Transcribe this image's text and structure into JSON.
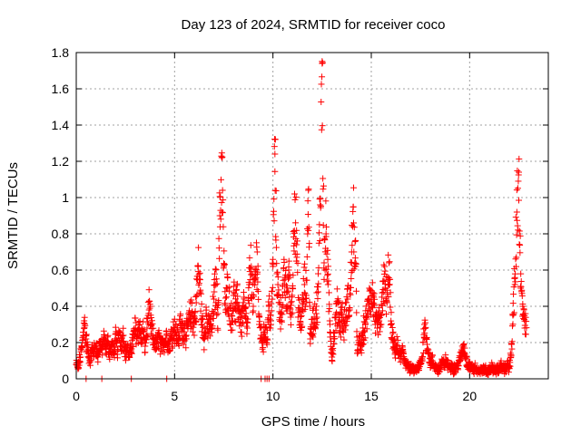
{
  "chart_data": {
    "type": "scatter",
    "title": "Day 123 of 2024, SRMTID for receiver coco",
    "xlabel": "GPS time / hours",
    "ylabel": "SRMTID / TECUs",
    "xlim": [
      0,
      24
    ],
    "ylim": [
      0,
      1.8
    ],
    "xticks": [
      0,
      5,
      10,
      15,
      20
    ],
    "yticks": [
      0,
      0.2,
      0.4,
      0.6,
      0.8,
      1.0,
      1.2,
      1.4,
      1.6,
      1.8
    ],
    "ytick_labels": [
      "0",
      "0.2",
      "0.4",
      "0.6",
      "0.8",
      "1",
      "1.2",
      "1.4",
      "1.6",
      "1.8"
    ],
    "grid": true,
    "marker": "+",
    "color": "#ff0000",
    "series": [
      {
        "name": "SRMTID",
        "x": [
          0.0,
          0.1,
          0.2,
          0.3,
          0.4,
          0.5,
          0.6,
          0.7,
          0.8,
          0.9,
          1.0,
          1.1,
          1.2,
          1.3,
          1.4,
          1.5,
          1.6,
          1.7,
          1.8,
          1.9,
          2.0,
          2.1,
          2.2,
          2.3,
          2.4,
          2.5,
          2.6,
          2.7,
          2.8,
          2.9,
          3.0,
          3.1,
          3.2,
          3.3,
          3.4,
          3.5,
          3.6,
          3.7,
          3.8,
          3.9,
          4.0,
          4.1,
          4.2,
          4.3,
          4.4,
          4.5,
          4.6,
          4.7,
          4.8,
          4.9,
          5.0,
          5.1,
          5.2,
          5.3,
          5.4,
          5.5,
          5.6,
          5.7,
          5.8,
          5.9,
          6.0,
          6.1,
          6.2,
          6.3,
          6.4,
          6.5,
          6.6,
          6.7,
          6.8,
          6.9,
          7.0,
          7.1,
          7.2,
          7.3,
          7.4,
          7.5,
          7.6,
          7.7,
          7.8,
          7.9,
          8.0,
          8.1,
          8.2,
          8.3,
          8.4,
          8.5,
          8.6,
          8.7,
          8.8,
          8.9,
          9.0,
          9.1,
          9.2,
          9.3,
          9.4,
          9.5,
          9.6,
          9.7,
          9.8,
          9.9,
          10.0,
          10.1,
          10.2,
          10.3,
          10.4,
          10.5,
          10.6,
          10.7,
          10.8,
          10.9,
          11.0,
          11.1,
          11.2,
          11.3,
          11.4,
          11.5,
          11.6,
          11.7,
          11.8,
          11.9,
          12.0,
          12.1,
          12.2,
          12.3,
          12.4,
          12.5,
          12.6,
          12.7,
          12.8,
          12.9,
          13.0,
          13.1,
          13.2,
          13.3,
          13.4,
          13.5,
          13.6,
          13.7,
          13.8,
          13.9,
          14.0,
          14.1,
          14.2,
          14.3,
          14.4,
          14.5,
          14.6,
          14.7,
          14.8,
          14.9,
          15.0,
          15.1,
          15.2,
          15.3,
          15.4,
          15.5,
          15.6,
          15.7,
          15.8,
          15.9,
          16.0,
          16.1,
          16.2,
          16.3,
          16.4,
          16.5,
          16.6,
          16.7,
          16.8,
          16.9,
          17.0,
          17.1,
          17.2,
          17.3,
          17.4,
          17.5,
          17.6,
          17.7,
          17.8,
          17.9,
          18.0,
          18.1,
          18.2,
          18.3,
          18.4,
          18.5,
          18.6,
          18.7,
          18.8,
          18.9,
          19.0,
          19.1,
          19.2,
          19.3,
          19.4,
          19.5,
          19.6,
          19.7,
          19.8,
          19.9,
          20.0,
          20.1,
          20.2,
          20.3,
          20.4,
          20.5,
          20.6,
          20.7,
          20.8,
          20.9,
          21.0,
          21.1,
          21.2,
          21.3,
          21.4,
          21.5,
          21.6,
          21.7,
          21.8,
          21.9,
          22.0,
          22.1,
          22.2,
          22.3,
          22.4,
          22.5,
          22.6,
          22.7,
          22.8
        ],
        "y": [
          0.08,
          0.06,
          0.12,
          0.18,
          0.32,
          0.22,
          0.14,
          0.1,
          0.16,
          0.15,
          0.18,
          0.12,
          0.2,
          0.16,
          0.22,
          0.17,
          0.2,
          0.15,
          0.18,
          0.14,
          0.22,
          0.16,
          0.26,
          0.2,
          0.24,
          0.14,
          0.17,
          0.12,
          0.18,
          0.22,
          0.28,
          0.24,
          0.3,
          0.22,
          0.26,
          0.18,
          0.28,
          0.38,
          0.3,
          0.22,
          0.2,
          0.18,
          0.24,
          0.16,
          0.22,
          0.2,
          0.24,
          0.18,
          0.22,
          0.26,
          0.28,
          0.24,
          0.22,
          0.3,
          0.26,
          0.28,
          0.24,
          0.3,
          0.34,
          0.36,
          0.3,
          0.42,
          0.62,
          0.48,
          0.3,
          0.22,
          0.36,
          0.26,
          0.3,
          0.28,
          0.44,
          0.52,
          0.36,
          0.9,
          1.22,
          0.62,
          0.38,
          0.5,
          0.4,
          0.32,
          0.46,
          0.38,
          0.42,
          0.36,
          0.3,
          0.4,
          0.34,
          0.28,
          0.52,
          0.62,
          0.4,
          0.55,
          0.7,
          0.3,
          0.24,
          0.2,
          0.28,
          0.22,
          0.4,
          0.3,
          0.62,
          1.24,
          0.58,
          0.42,
          0.36,
          0.46,
          0.56,
          0.4,
          0.6,
          0.34,
          0.5,
          1.02,
          0.74,
          0.38,
          0.3,
          0.38,
          0.52,
          0.46,
          1.04,
          0.22,
          0.3,
          0.34,
          0.36,
          0.48,
          0.96,
          1.74,
          0.64,
          0.8,
          0.52,
          0.3,
          0.12,
          0.22,
          0.34,
          0.42,
          0.3,
          0.36,
          0.28,
          0.34,
          0.44,
          0.38,
          0.7,
          0.86,
          0.62,
          0.14,
          0.2,
          0.18,
          0.26,
          0.3,
          0.36,
          0.5,
          0.42,
          0.46,
          0.3,
          0.28,
          0.32,
          0.3,
          0.54,
          0.5,
          0.42,
          0.64,
          0.3,
          0.2,
          0.16,
          0.18,
          0.14,
          0.12,
          0.16,
          0.1,
          0.08,
          0.06,
          0.05,
          0.06,
          0.04,
          0.05,
          0.06,
          0.08,
          0.12,
          0.3,
          0.22,
          0.16,
          0.08,
          0.1,
          0.06,
          0.07,
          0.05,
          0.06,
          0.09,
          0.08,
          0.1,
          0.07,
          0.06,
          0.08,
          0.05,
          0.06,
          0.08,
          0.1,
          0.14,
          0.18,
          0.12,
          0.08,
          0.07,
          0.06,
          0.05,
          0.06,
          0.04,
          0.05,
          0.04,
          0.06,
          0.05,
          0.04,
          0.05,
          0.06,
          0.05,
          0.04,
          0.06,
          0.05,
          0.07,
          0.06,
          0.05,
          0.08,
          0.06,
          0.12,
          0.35,
          0.52,
          0.92,
          1.14,
          0.5,
          0.4,
          0.28
        ]
      }
    ],
    "zero_points_x": [
      0.5,
      1.3,
      2.8,
      4.6,
      9.4,
      9.6,
      9.7,
      9.8
    ]
  }
}
